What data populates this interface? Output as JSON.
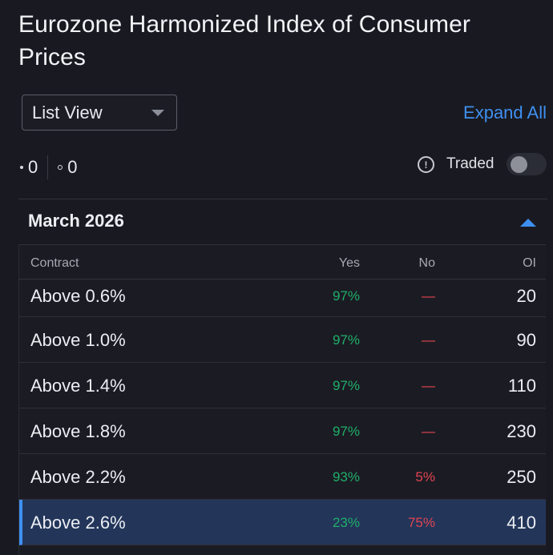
{
  "page": {
    "title": "Eurozone Harmonized Index of Consumer Prices"
  },
  "controls": {
    "view_select": {
      "value": "List View"
    },
    "expand_all_label": "Expand All"
  },
  "counts": {
    "filled": "0",
    "outlined": "0"
  },
  "traded": {
    "info_icon": "!",
    "label": "Traded",
    "enabled": false
  },
  "group": {
    "title": "March 2026",
    "expanded": true
  },
  "table": {
    "headers": {
      "contract": "Contract",
      "yes": "Yes",
      "no": "No",
      "oi": "OI"
    },
    "rows": [
      {
        "contract": "Above 0.6%",
        "yes": "97%",
        "no": "—",
        "oi": "20"
      },
      {
        "contract": "Above 1.0%",
        "yes": "97%",
        "no": "—",
        "oi": "90"
      },
      {
        "contract": "Above 1.4%",
        "yes": "97%",
        "no": "—",
        "oi": "110"
      },
      {
        "contract": "Above 1.8%",
        "yes": "97%",
        "no": "—",
        "oi": "230"
      },
      {
        "contract": "Above 2.2%",
        "yes": "93%",
        "no": "5%",
        "oi": "250"
      },
      {
        "contract": "Above 2.6%",
        "yes": "23%",
        "no": "75%",
        "oi": "410"
      }
    ]
  },
  "colors": {
    "background": "#191a21",
    "accent": "#3f8ff0",
    "yes": "#1fae6a",
    "no": "#e34352",
    "selected_row": "#23365a"
  }
}
